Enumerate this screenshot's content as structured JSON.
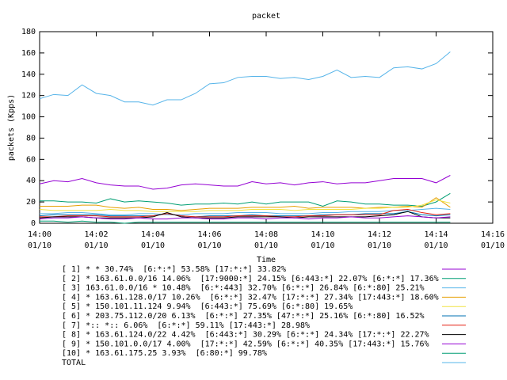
{
  "chart_data": {
    "type": "line",
    "title": "packet",
    "x_label": "Time",
    "y_label": "packets (Kpps)",
    "x": [
      0,
      0.5,
      1,
      1.5,
      2,
      2.5,
      3,
      3.5,
      4,
      4.5,
      5,
      5.5,
      6,
      6.5,
      7,
      7.5,
      8,
      8.5,
      9,
      9.5,
      10,
      10.5,
      11,
      11.5,
      12,
      12.5,
      13,
      13.5,
      14,
      14.5
    ],
    "xlim": [
      0,
      16
    ],
    "xticks": [
      {
        "value": 0,
        "label": "14:00\n01/10"
      },
      {
        "value": 2,
        "label": "14:02\n01/10"
      },
      {
        "value": 4,
        "label": "14:04\n01/10"
      },
      {
        "value": 6,
        "label": "14:06\n01/10"
      },
      {
        "value": 8,
        "label": "14:08\n01/10"
      },
      {
        "value": 10,
        "label": "14:10\n01/10"
      },
      {
        "value": 12,
        "label": "14:12\n01/10"
      },
      {
        "value": 14,
        "label": "14:14\n01/10"
      },
      {
        "value": 16,
        "label": "14:16\n01/10"
      }
    ],
    "ylim": [
      0,
      180
    ],
    "yticks": [
      0,
      20,
      40,
      60,
      80,
      100,
      120,
      140,
      160,
      180
    ],
    "grid": false,
    "series": [
      {
        "name": "[ 1] * * 30.74%  [6:*:*] 53.58% [17:*:*] 33.82%",
        "color": "#9400d3",
        "values": [
          37,
          40,
          39,
          42,
          38,
          36,
          35,
          35,
          32,
          33,
          36,
          37,
          36,
          35,
          35,
          39,
          37,
          38,
          36,
          38,
          39,
          37,
          38,
          38,
          40,
          42,
          42,
          42,
          38,
          45
        ]
      },
      {
        "name": "[ 2] * 163.61.0.0/16 14.06%  [17:9000:*] 24.15% [6:443:*] 22.07% [6:*:*] 17.36%",
        "color": "#009e73",
        "values": [
          21,
          21,
          20,
          20,
          19,
          23,
          20,
          21,
          20,
          19,
          17,
          18,
          18,
          19,
          18,
          20,
          18,
          20,
          20,
          20,
          16,
          21,
          20,
          18,
          18,
          17,
          17,
          16,
          20,
          28
        ]
      },
      {
        "name": "[ 3] 163.61.0.0/16 * 10.48%  [6:*:443] 32.70% [6:*:*] 26.84% [6:*:80] 25.21%",
        "color": "#56b4e9",
        "values": [
          9,
          9,
          10,
          10,
          9,
          8,
          8,
          9,
          9,
          8,
          8,
          9,
          9,
          9,
          10,
          10,
          10,
          9,
          9,
          9,
          10,
          10,
          11,
          11,
          11,
          12,
          12,
          13,
          14,
          13
        ]
      },
      {
        "name": "[ 4] * 163.61.128.0/17 10.26%  [6:*:*] 32.47% [17:*:*] 27.34% [17:443:*] 18.60%",
        "color": "#e69f00",
        "values": [
          16,
          16,
          16,
          17,
          17,
          15,
          14,
          15,
          13,
          13,
          12,
          13,
          14,
          14,
          14,
          15,
          15,
          15,
          16,
          14,
          15,
          15,
          15,
          14,
          15,
          15,
          16,
          15,
          24,
          15
        ]
      },
      {
        "name": "[ 5] * 150.101.11.124 9.94%  [6:443:*] 75.69% [6:*:80] 19.65%",
        "color": "#f0e442",
        "values": [
          13,
          12,
          12,
          12,
          12,
          13,
          12,
          12,
          11,
          11,
          11,
          11,
          12,
          12,
          12,
          13,
          13,
          13,
          12,
          13,
          13,
          13,
          13,
          14,
          14,
          15,
          15,
          17,
          22,
          19
        ]
      },
      {
        "name": "[ 6] * 203.75.112.0/20 6.13%  [6:*:*] 27.35% [47:*:*] 25.16% [6:*:80] 16.52%",
        "color": "#0072b2",
        "values": [
          7,
          8,
          8,
          8,
          8,
          7,
          7,
          7,
          7,
          9,
          7,
          6,
          7,
          7,
          7,
          8,
          7,
          7,
          7,
          7,
          8,
          8,
          8,
          9,
          9,
          9,
          11,
          8,
          7,
          8
        ]
      },
      {
        "name": "[ 7] *:: *:: 6.06%  [6:*:*] 59.11% [17:443:*] 28.98%",
        "color": "#e51e10",
        "values": [
          6,
          6,
          7,
          7,
          7,
          6,
          6,
          6,
          7,
          9,
          7,
          6,
          6,
          6,
          7,
          7,
          7,
          6,
          6,
          7,
          7,
          8,
          8,
          8,
          8,
          12,
          13,
          10,
          8,
          9
        ]
      },
      {
        "name": "[ 8] * 163.61.124.0/22 4.42%  [6:443:*] 30.29% [6:*:*] 24.34% [17:*:*] 22.27%",
        "color": "#000000",
        "values": [
          5,
          6,
          6,
          6,
          5,
          5,
          5,
          5,
          6,
          10,
          6,
          5,
          5,
          5,
          6,
          6,
          6,
          6,
          5,
          6,
          6,
          6,
          6,
          6,
          7,
          8,
          11,
          6,
          5,
          5
        ]
      },
      {
        "name": "[ 9] * 150.101.0.0/17 4.00%  [17:*:*] 42.59% [6:*:*] 40.35% [17:443:*] 15.76%",
        "color": "#9400d3",
        "values": [
          4,
          5,
          5,
          6,
          5,
          4,
          4,
          5,
          4,
          4,
          5,
          5,
          4,
          4,
          5,
          5,
          4,
          5,
          5,
          4,
          5,
          5,
          6,
          5,
          5,
          6,
          7,
          6,
          5,
          6
        ]
      },
      {
        "name": "[10] * 163.61.175.25 3.93%  [6:80:*] 99.78%",
        "color": "#009e73",
        "values": [
          2,
          2,
          1,
          2,
          1,
          1,
          0,
          1,
          1,
          1,
          1,
          1,
          1,
          1,
          1,
          1,
          1,
          1,
          1,
          1,
          1,
          1,
          1,
          1,
          1,
          1,
          1,
          1,
          1,
          1
        ]
      },
      {
        "name": "TOTAL",
        "color": "#56b4e9",
        "values": [
          117,
          121,
          120,
          130,
          122,
          120,
          114,
          114,
          111,
          116,
          116,
          122,
          131,
          132,
          137,
          138,
          138,
          136,
          137,
          135,
          138,
          144,
          137,
          138,
          137,
          146,
          147,
          145,
          150,
          161
        ]
      }
    ]
  }
}
